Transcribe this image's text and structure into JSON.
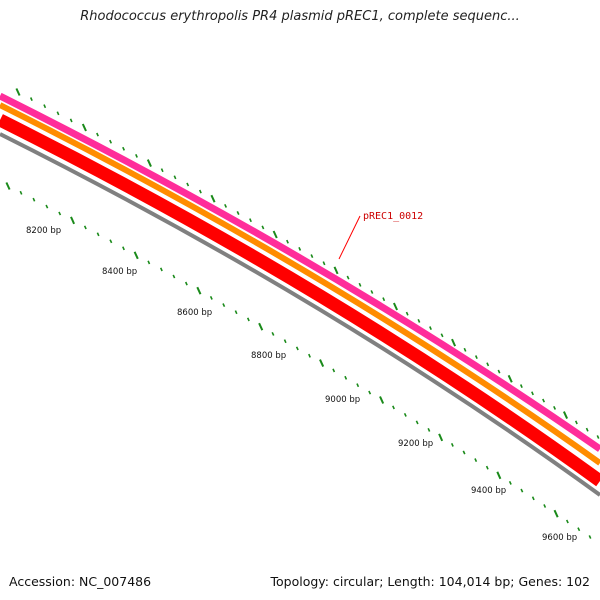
{
  "title": "Rhodococcus erythropolis PR4 plasmid pREC1, complete sequenc...",
  "feature_label": "pREC1_0012",
  "tick_labels": [
    "8200 bp",
    "8400 bp",
    "8600 bp",
    "8800 bp",
    "9000 bp",
    "9200 bp",
    "9400 bp",
    "9600 bp"
  ],
  "footer": {
    "accession": "Accession: NC_007486",
    "summary": "Topology: circular; Length: 104,014 bp; Genes: 102"
  },
  "colors": {
    "tick": "#1a8a1a",
    "track_magenta": "#ff2d9a",
    "track_orange": "#ff8c00",
    "track_red": "#ff0000",
    "track_darkred": "#d40000",
    "track_gray": "#808080",
    "pointer": "#ff0000",
    "feature_label": "#cc0000"
  }
}
